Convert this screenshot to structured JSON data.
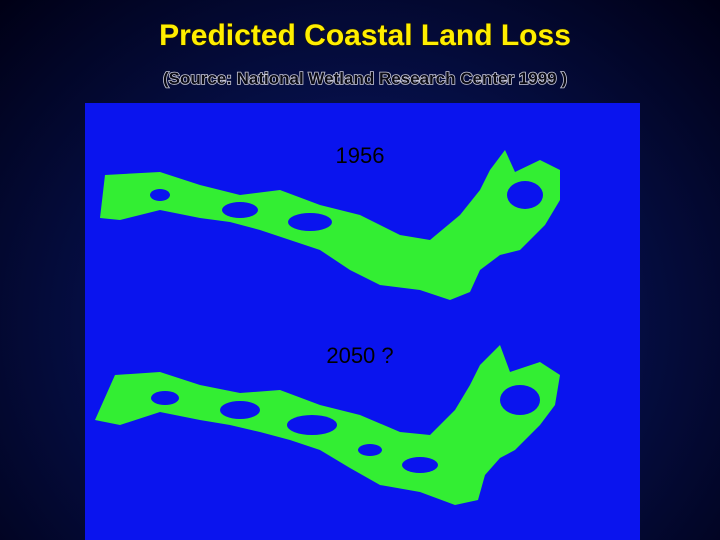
{
  "title": "Predicted Coastal Land Loss",
  "subtitle": "(Source: National Wetland Research Center 1999 )",
  "maps": [
    {
      "label": "1956"
    },
    {
      "label": "2050 ?"
    }
  ]
}
